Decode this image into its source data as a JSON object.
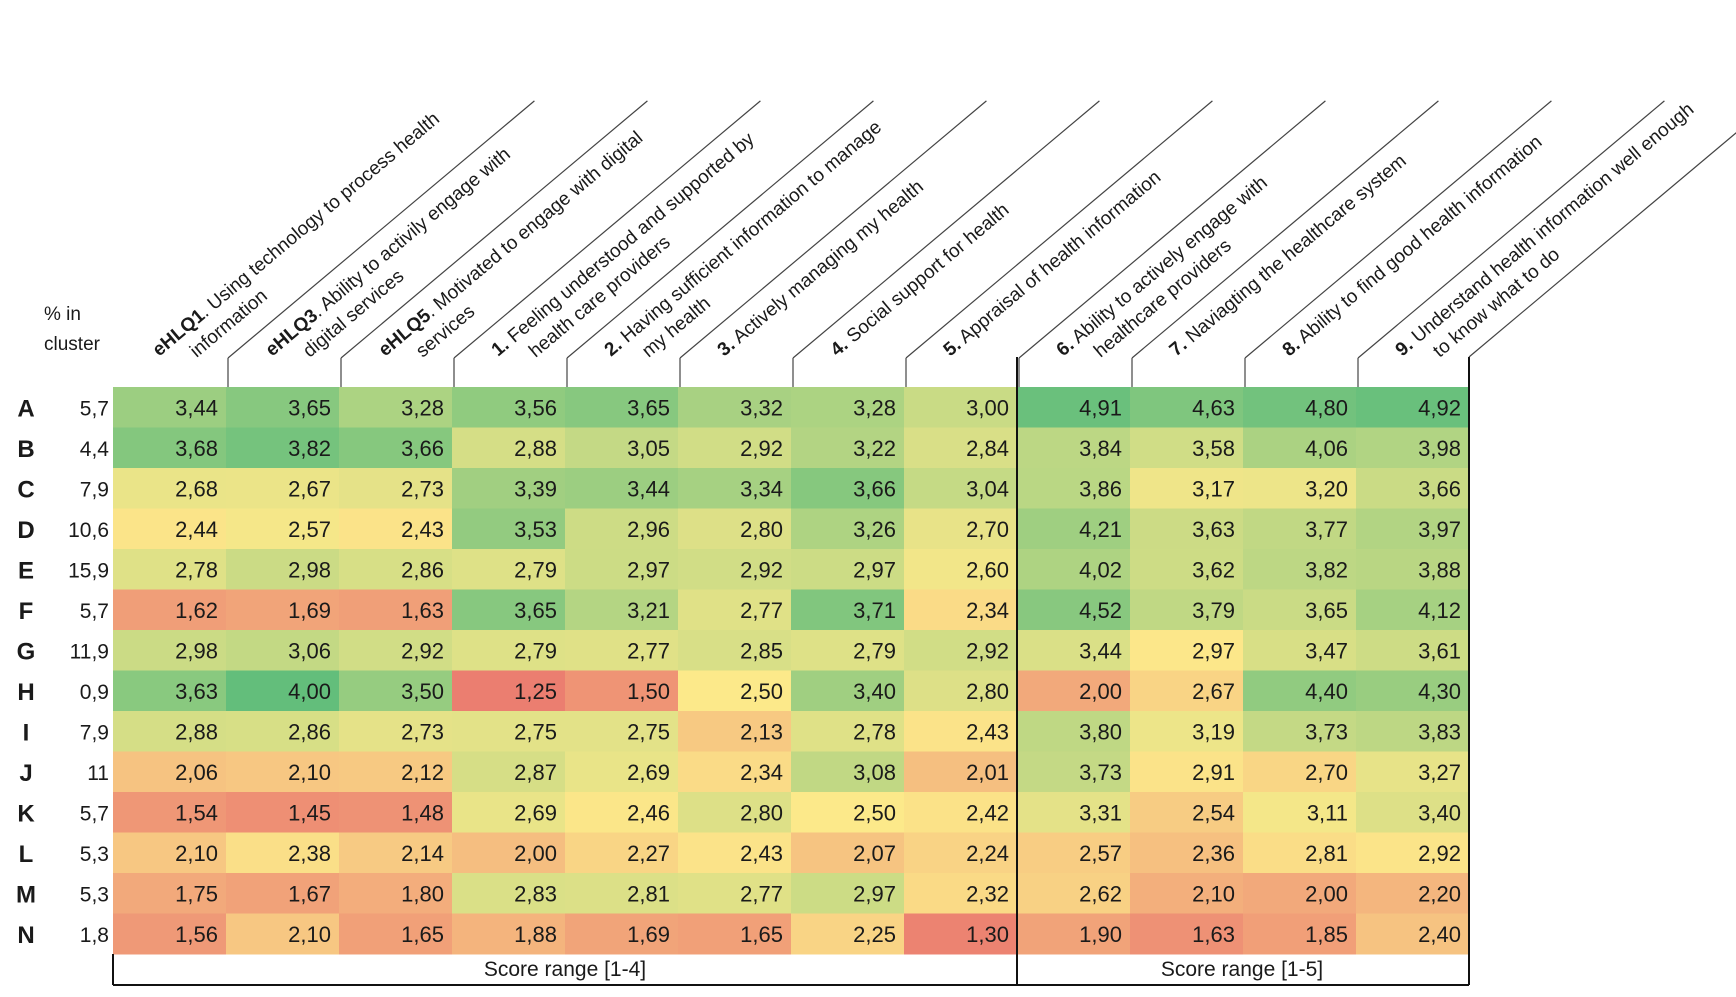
{
  "header": {
    "pct_label_1": "% in",
    "pct_label_2": "cluster"
  },
  "footer": {
    "range_left": "Score range [1-4]",
    "range_right": "Score range [1-5]"
  },
  "chart_data": {
    "type": "heatmap",
    "color_scale": {
      "low": "#e8696b",
      "mid": "#fce98a",
      "high": "#63be7b"
    },
    "columns": [
      {
        "code": "eHLQ1",
        "text": ". Using technology to process health information",
        "max": 4
      },
      {
        "code": "eHLQ3",
        "text": ". Ability to activily engage with digital services",
        "max": 4
      },
      {
        "code": "eHLQ5",
        "text": ". Motivated to engage with digital services",
        "max": 4
      },
      {
        "code": "1.",
        "text": " Feeling understood and supported by health care providers",
        "max": 4
      },
      {
        "code": "2.",
        "text": " Having sufficient information to manage my health",
        "max": 4
      },
      {
        "code": "3.",
        "text": " Actively managing my health",
        "max": 4
      },
      {
        "code": "4.",
        "text": " Social support for health",
        "max": 4
      },
      {
        "code": "5.",
        "text": " Appraisal of health information",
        "max": 4
      },
      {
        "code": "6.",
        "text": " Ability to actively engage with healthcare providers",
        "max": 5
      },
      {
        "code": "7.",
        "text": " Naviagting the healthcare system",
        "max": 5
      },
      {
        "code": "8.",
        "text": " Ability to find good health information",
        "max": 5
      },
      {
        "code": "9.",
        "text": " Understand health information well enough to know what to do",
        "max": 5
      }
    ],
    "rows": [
      {
        "cluster": "A",
        "pct": "5,7",
        "values": [
          3.44,
          3.65,
          3.28,
          3.56,
          3.65,
          3.32,
          3.28,
          3.0,
          4.91,
          4.63,
          4.8,
          4.92
        ]
      },
      {
        "cluster": "B",
        "pct": "4,4",
        "values": [
          3.68,
          3.82,
          3.66,
          2.88,
          3.05,
          2.92,
          3.22,
          2.84,
          3.84,
          3.58,
          4.06,
          3.98
        ]
      },
      {
        "cluster": "C",
        "pct": "7,9",
        "values": [
          2.68,
          2.67,
          2.73,
          3.39,
          3.44,
          3.34,
          3.66,
          3.04,
          3.86,
          3.17,
          3.2,
          3.66
        ]
      },
      {
        "cluster": "D",
        "pct": "10,6",
        "values": [
          2.44,
          2.57,
          2.43,
          3.53,
          2.96,
          2.8,
          3.26,
          2.7,
          4.21,
          3.63,
          3.77,
          3.97
        ]
      },
      {
        "cluster": "E",
        "pct": "15,9",
        "values": [
          2.78,
          2.98,
          2.86,
          2.79,
          2.97,
          2.92,
          2.97,
          2.6,
          4.02,
          3.62,
          3.82,
          3.88
        ]
      },
      {
        "cluster": "F",
        "pct": "5,7",
        "values": [
          1.62,
          1.69,
          1.63,
          3.65,
          3.21,
          2.77,
          3.71,
          2.34,
          4.52,
          3.79,
          3.65,
          4.12
        ]
      },
      {
        "cluster": "G",
        "pct": "11,9",
        "values": [
          2.98,
          3.06,
          2.92,
          2.79,
          2.77,
          2.85,
          2.79,
          2.92,
          3.44,
          2.97,
          3.47,
          3.61
        ]
      },
      {
        "cluster": "H",
        "pct": "0,9",
        "values": [
          3.63,
          4.0,
          3.5,
          1.25,
          1.5,
          2.5,
          3.4,
          2.8,
          2.0,
          2.67,
          4.4,
          4.3
        ]
      },
      {
        "cluster": "I",
        "pct": "7,9",
        "values": [
          2.88,
          2.86,
          2.73,
          2.75,
          2.75,
          2.13,
          2.78,
          2.43,
          3.8,
          3.19,
          3.73,
          3.83
        ]
      },
      {
        "cluster": "J",
        "pct": "11",
        "values": [
          2.06,
          2.1,
          2.12,
          2.87,
          2.69,
          2.34,
          3.08,
          2.01,
          3.73,
          2.91,
          2.7,
          3.27
        ]
      },
      {
        "cluster": "K",
        "pct": "5,7",
        "values": [
          1.54,
          1.45,
          1.48,
          2.69,
          2.46,
          2.8,
          2.5,
          2.42,
          3.31,
          2.54,
          3.11,
          3.4
        ]
      },
      {
        "cluster": "L",
        "pct": "5,3",
        "values": [
          2.1,
          2.38,
          2.14,
          2.0,
          2.27,
          2.43,
          2.07,
          2.24,
          2.57,
          2.36,
          2.81,
          2.92
        ]
      },
      {
        "cluster": "M",
        "pct": "5,3",
        "values": [
          1.75,
          1.67,
          1.8,
          2.83,
          2.81,
          2.77,
          2.97,
          2.32,
          2.62,
          2.1,
          2.0,
          2.2
        ]
      },
      {
        "cluster": "N",
        "pct": "1,8",
        "values": [
          1.56,
          2.1,
          1.65,
          1.88,
          1.69,
          1.65,
          2.25,
          1.3,
          1.9,
          1.63,
          1.85,
          2.4
        ]
      }
    ]
  }
}
